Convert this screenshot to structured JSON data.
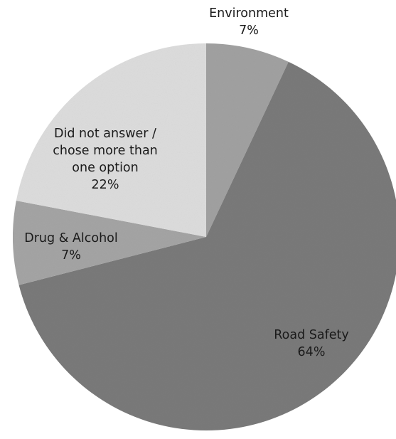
{
  "chart_data": {
    "type": "pie",
    "slices": [
      {
        "label_lines": [
          "Environment"
        ],
        "percent_label": "7%",
        "value": 7,
        "color": "#a1a1a1"
      },
      {
        "label_lines": [
          "Road Safety"
        ],
        "percent_label": "64%",
        "value": 64,
        "color": "#7a7a7a"
      },
      {
        "label_lines": [
          "Drug & Alcohol"
        ],
        "percent_label": "7%",
        "value": 7,
        "color": "#a4a4a4"
      },
      {
        "label_lines": [
          "Did not answer /",
          "chose more than",
          "one option"
        ],
        "percent_label": "22%",
        "value": 22,
        "color": "#dcdcdc"
      }
    ],
    "start_angle_deg": 0,
    "direction": "clockwise",
    "legend": "none",
    "data_labels": "category-and-percent"
  }
}
